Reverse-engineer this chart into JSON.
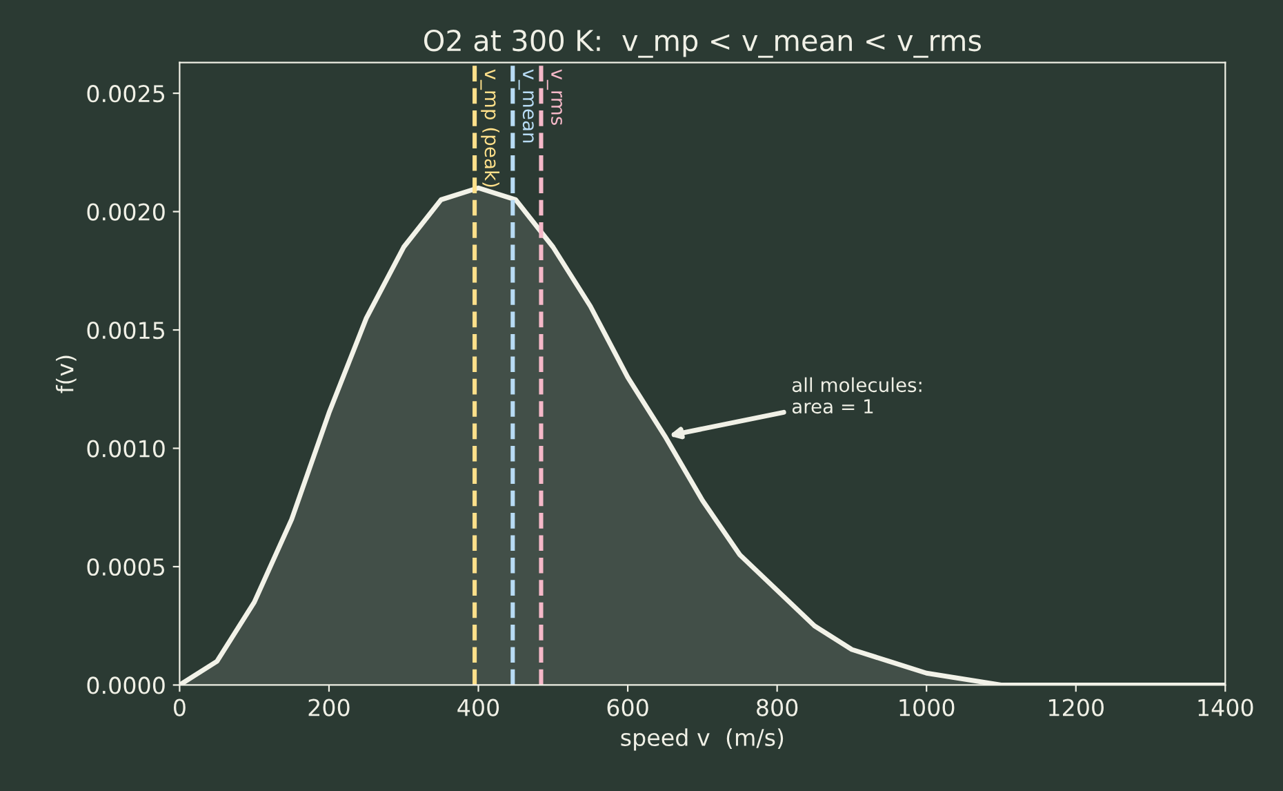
{
  "chart_data": {
    "type": "area",
    "title": "O2 at 300 K:  v_mp < v_mean < v_rms",
    "xlabel": "speed v  (m/s)",
    "ylabel": "f(v)",
    "x": [
      0,
      50,
      100,
      150,
      200,
      250,
      300,
      350,
      400,
      450,
      500,
      550,
      600,
      650,
      700,
      750,
      800,
      850,
      900,
      950,
      1000,
      1100,
      1200,
      1300,
      1400
    ],
    "series": [
      {
        "color": "#f2f2e8",
        "values": [
          0,
          0.0001,
          0.00035,
          0.0007,
          0.00115,
          0.00155,
          0.00185,
          0.00205,
          0.0021,
          0.00205,
          0.00185,
          0.0016,
          0.0013,
          0.00105,
          0.00078,
          0.00055,
          0.0004,
          0.00025,
          0.00015,
          0.0001,
          5e-05,
          0,
          0,
          0,
          0
        ]
      }
    ],
    "ref_lines": [
      {
        "axis": "x",
        "value": 395,
        "label": "v_mp (peak)",
        "color": "#ffe08a",
        "line_style": "dashed"
      },
      {
        "axis": "x",
        "value": 446,
        "label": "v_mean",
        "color": "#b8dcf5",
        "line_style": "dashed"
      },
      {
        "axis": "x",
        "value": 484,
        "label": "v_rms",
        "color": "#f5b8c8",
        "line_style": "dashed"
      }
    ],
    "annotations": [
      "all molecules:\narea = 1"
    ],
    "xlim": [
      0,
      1400
    ],
    "ylim": [
      0,
      0.00263
    ],
    "xticks": [
      0,
      200,
      400,
      600,
      800,
      1000,
      1200,
      1400
    ],
    "yticks": [
      {
        "value": 0,
        "label": "0.0000"
      },
      {
        "value": 0.0005,
        "label": "0.0005"
      },
      {
        "value": 0.001,
        "label": "0.0010"
      },
      {
        "value": 0.0015,
        "label": "0.0015"
      },
      {
        "value": 0.002,
        "label": "0.0020"
      },
      {
        "value": 0.0025,
        "label": "0.0025"
      }
    ],
    "grid": false,
    "legend": false,
    "line_style": "solid",
    "marker": "none"
  }
}
